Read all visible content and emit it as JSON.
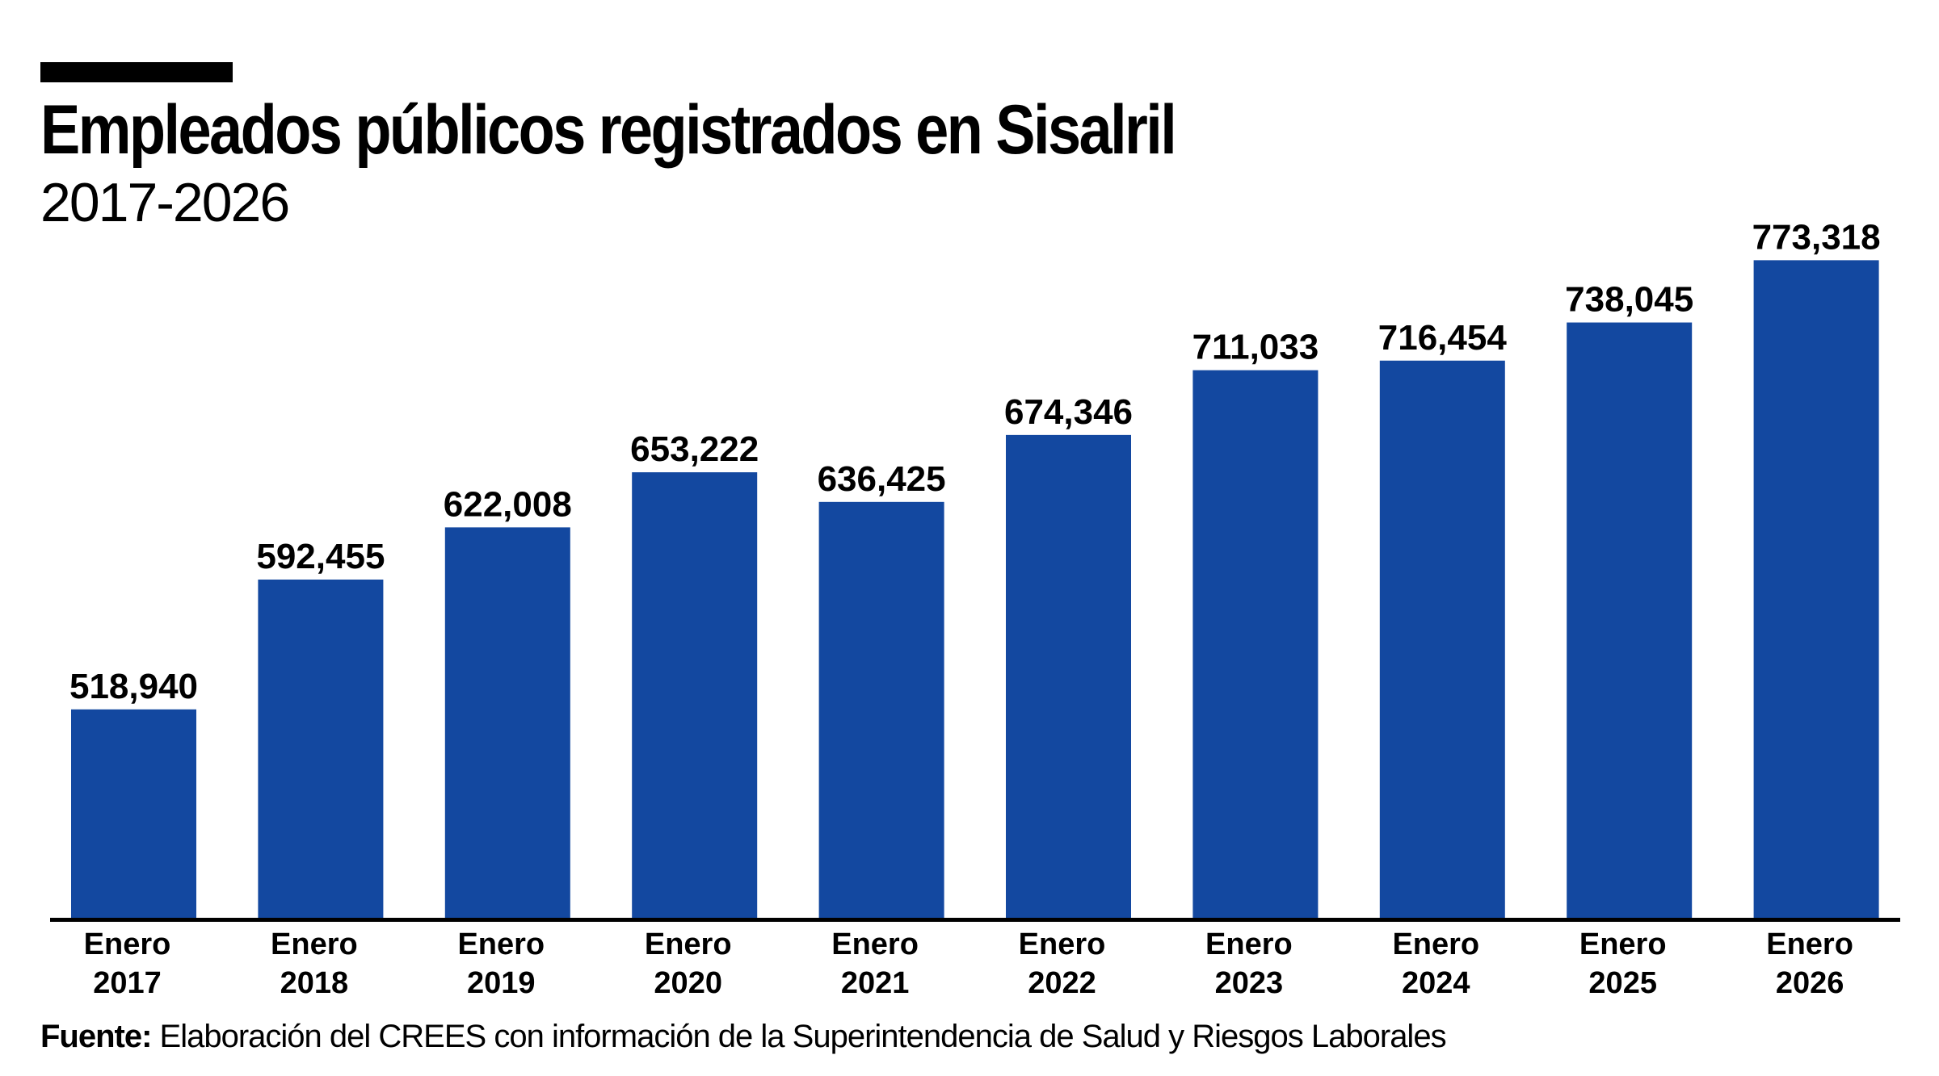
{
  "chart_data": {
    "type": "bar",
    "title": "Empleados públicos registrados en Sisalril",
    "subtitle": "2017-2026",
    "categories": [
      [
        "Enero",
        "2017"
      ],
      [
        "Enero",
        "2018"
      ],
      [
        "Enero",
        "2019"
      ],
      [
        "Enero",
        "2020"
      ],
      [
        "Enero",
        "2021"
      ],
      [
        "Enero",
        "2022"
      ],
      [
        "Enero",
        "2023"
      ],
      [
        "Enero",
        "2024"
      ],
      [
        "Enero",
        "2025"
      ],
      [
        "Enero",
        "2026"
      ]
    ],
    "values": [
      518940,
      592455,
      622008,
      653222,
      636425,
      674346,
      711033,
      716454,
      738045,
      773318
    ],
    "value_labels": [
      "518,940",
      "592,455",
      "622,008",
      "653,222",
      "636,425",
      "674,346",
      "711,033",
      "716,454",
      "738,045",
      "773,318"
    ],
    "xlabel": "",
    "ylabel": "",
    "ylim": [
      400000,
      800000
    ],
    "grid": false,
    "bar_color": "#1348a0"
  },
  "footer": {
    "source_label": "Fuente:",
    "source_text": " Elaboración del CREES con información de la Superintendencia de Salud y Riesgos Laborales"
  }
}
